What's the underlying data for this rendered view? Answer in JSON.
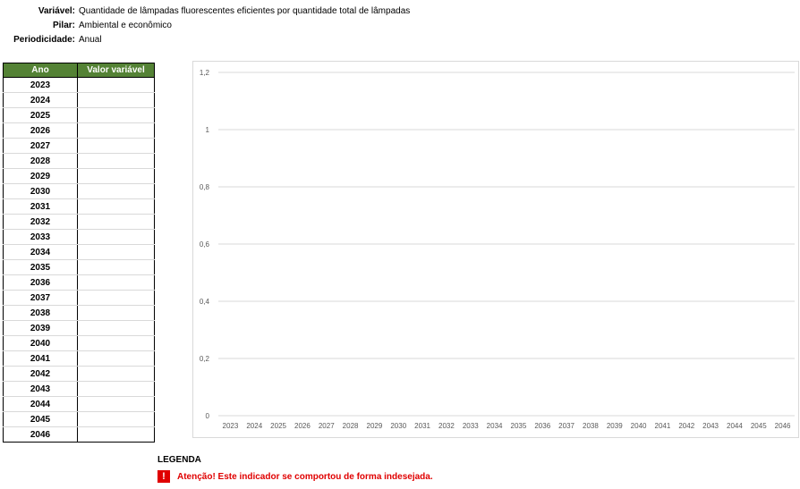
{
  "meta": {
    "variavel_label": "Variável:",
    "variavel_value": "Quantidade de lâmpadas fluorescentes eficientes por quantidade total de lâmpadas",
    "pilar_label": "Pilar:",
    "pilar_value": "Ambiental e econômico",
    "periodicidade_label": "Periodicidade:",
    "periodicidade_value": "Anual"
  },
  "table": {
    "headers": [
      "Ano",
      "Valor variável"
    ],
    "years": [
      "2023",
      "2024",
      "2025",
      "2026",
      "2027",
      "2028",
      "2029",
      "2030",
      "2031",
      "2032",
      "2033",
      "2034",
      "2035",
      "2036",
      "2037",
      "2038",
      "2039",
      "2040",
      "2041",
      "2042",
      "2043",
      "2044",
      "2045",
      "2046"
    ]
  },
  "chart_data": {
    "type": "line",
    "categories": [
      "2023",
      "2024",
      "2025",
      "2026",
      "2027",
      "2028",
      "2029",
      "2030",
      "2031",
      "2032",
      "2033",
      "2034",
      "2035",
      "2036",
      "2037",
      "2038",
      "2039",
      "2040",
      "2041",
      "2042",
      "2043",
      "2044",
      "2045",
      "2046"
    ],
    "series": [],
    "y_ticks": [
      "0",
      "0,2",
      "0,4",
      "0,6",
      "0,8",
      "1",
      "1,2"
    ],
    "ylim": [
      0,
      1.2
    ],
    "grid": true,
    "legend": "none"
  },
  "legend": {
    "title": "LEGENDA",
    "icon_text": "!",
    "warning": "Atenção! Este indicador se comportou de forma indesejada."
  },
  "colors": {
    "header_green": "#548235",
    "warning_red": "#e00000",
    "grid": "#d9d9d9"
  }
}
